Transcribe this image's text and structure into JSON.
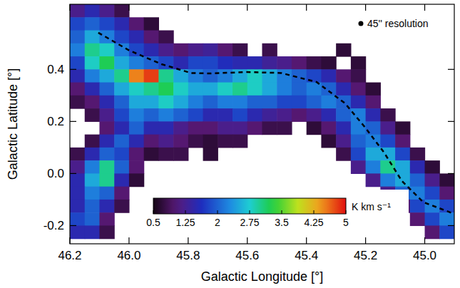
{
  "chart_data": {
    "type": "heatmap",
    "xlabel": "Galactic Longitude [°]",
    "ylabel": "Galactic Latitude [°]",
    "annotation": "45'' resolution",
    "xlim": [
      46.2,
      44.9
    ],
    "ylim": [
      -0.27,
      0.65
    ],
    "xticks": [
      46.2,
      {
        "value": 46,
        "label": "46.0"
      },
      45.8,
      45.6,
      45.4,
      45.2,
      {
        "value": 45,
        "label": "45.0"
      }
    ],
    "yticks": [
      0.4,
      0.2,
      {
        "value": 0,
        "label": "0.0"
      },
      -0.2
    ],
    "zlim": [
      0.5,
      5
    ],
    "zticks": [
      0.5,
      1.25,
      2,
      2.75,
      3.5,
      4.25,
      5
    ],
    "zlabel": "K km s⁻¹",
    "x": [
      46.175,
      46.125,
      46.075,
      46.025,
      45.975,
      45.925,
      45.875,
      45.825,
      45.775,
      45.725,
      45.675,
      45.625,
      45.575,
      45.525,
      45.475,
      45.425,
      45.375,
      45.325,
      45.275,
      45.225,
      45.175,
      45.125,
      45.075,
      45.025,
      44.975,
      44.925
    ],
    "y": [
      0.625,
      0.575,
      0.525,
      0.475,
      0.425,
      0.375,
      0.325,
      0.275,
      0.225,
      0.175,
      0.125,
      0.075,
      0.025,
      -0.025,
      -0.075,
      -0.125,
      -0.175,
      -0.225
    ],
    "z": [
      [
        1.2,
        1.5,
        1.2,
        0.8,
        null,
        null,
        null,
        null,
        null,
        null,
        null,
        null,
        null,
        null,
        null,
        null,
        null,
        null,
        null,
        null,
        null,
        null,
        null,
        null,
        null,
        null
      ],
      [
        1.8,
        2.0,
        1.8,
        1.5,
        1.0,
        0.7,
        null,
        null,
        null,
        null,
        null,
        null,
        null,
        null,
        null,
        null,
        null,
        null,
        null,
        null,
        null,
        null,
        null,
        null,
        null,
        null
      ],
      [
        2.0,
        2.5,
        2.2,
        1.8,
        1.5,
        1.0,
        0.8,
        null,
        null,
        null,
        null,
        null,
        null,
        null,
        null,
        null,
        null,
        null,
        null,
        null,
        null,
        null,
        null,
        null,
        null,
        null
      ],
      [
        2.2,
        3.0,
        2.8,
        2.2,
        1.8,
        1.5,
        1.2,
        1.0,
        1.2,
        1.3,
        1.0,
        0.8,
        null,
        0.8,
        null,
        null,
        null,
        null,
        0.7,
        null,
        null,
        null,
        null,
        null,
        null,
        null
      ],
      [
        1.8,
        2.8,
        3.2,
        2.5,
        2.2,
        2.0,
        1.8,
        1.5,
        1.8,
        1.8,
        1.6,
        1.5,
        1.5,
        1.3,
        1.2,
        1.0,
        0.8,
        0.7,
        null,
        0.7,
        null,
        null,
        null,
        null,
        null,
        null
      ],
      [
        1.5,
        2.2,
        2.5,
        3.0,
        4.5,
        4.8,
        3.0,
        2.5,
        2.2,
        2.0,
        2.2,
        2.5,
        2.8,
        2.5,
        2.2,
        2.0,
        1.8,
        1.5,
        1.0,
        0.8,
        null,
        null,
        null,
        null,
        null,
        null
      ],
      [
        1.0,
        1.5,
        2.0,
        2.5,
        2.8,
        3.0,
        3.2,
        2.8,
        2.5,
        2.5,
        2.8,
        3.0,
        2.8,
        2.5,
        2.2,
        2.0,
        2.2,
        2.0,
        1.5,
        1.0,
        0.7,
        null,
        null,
        null,
        null,
        null
      ],
      [
        0.8,
        1.0,
        1.5,
        2.0,
        2.5,
        2.5,
        2.8,
        2.5,
        2.2,
        2.0,
        2.2,
        2.2,
        2.0,
        2.0,
        1.8,
        1.8,
        2.0,
        2.2,
        2.0,
        1.5,
        1.0,
        null,
        null,
        null,
        null,
        null
      ],
      [
        null,
        0.8,
        1.2,
        1.8,
        2.2,
        2.0,
        2.2,
        2.0,
        1.8,
        1.5,
        1.5,
        1.8,
        1.5,
        1.3,
        1.2,
        1.0,
        1.2,
        1.5,
        2.0,
        2.2,
        1.5,
        0.8,
        null,
        null,
        null,
        null
      ],
      [
        null,
        null,
        1.0,
        1.5,
        2.0,
        1.5,
        1.5,
        1.2,
        1.0,
        1.0,
        1.2,
        1.2,
        1.0,
        0.8,
        0.8,
        null,
        0.7,
        1.0,
        1.5,
        2.2,
        2.0,
        1.2,
        0.7,
        null,
        null,
        null
      ],
      [
        null,
        0.8,
        1.5,
        2.0,
        1.5,
        1.0,
        1.2,
        1.0,
        0.8,
        0.7,
        0.8,
        0.8,
        null,
        null,
        null,
        null,
        null,
        0.7,
        1.2,
        2.0,
        2.2,
        1.8,
        1.0,
        null,
        null,
        null
      ],
      [
        0.8,
        1.5,
        2.0,
        1.8,
        1.0,
        0.7,
        0.8,
        0.8,
        null,
        0.7,
        null,
        null,
        null,
        null,
        null,
        null,
        null,
        null,
        0.8,
        1.8,
        2.5,
        2.5,
        1.8,
        0.8,
        null,
        null
      ],
      [
        1.2,
        2.2,
        3.0,
        2.0,
        1.0,
        null,
        null,
        null,
        null,
        null,
        null,
        null,
        null,
        null,
        null,
        null,
        null,
        null,
        null,
        1.2,
        2.2,
        3.0,
        2.5,
        1.5,
        0.7,
        null
      ],
      [
        1.5,
        2.5,
        3.0,
        1.5,
        0.7,
        null,
        null,
        null,
        null,
        null,
        null,
        null,
        null,
        null,
        null,
        null,
        null,
        null,
        null,
        null,
        1.2,
        2.2,
        2.5,
        2.0,
        1.2,
        0.7
      ],
      [
        1.5,
        2.2,
        2.0,
        1.0,
        null,
        null,
        null,
        null,
        null,
        null,
        null,
        null,
        null,
        null,
        null,
        null,
        null,
        null,
        null,
        null,
        null,
        1.2,
        2.0,
        2.2,
        1.8,
        1.0
      ],
      [
        1.5,
        2.0,
        1.5,
        0.8,
        null,
        null,
        null,
        null,
        null,
        null,
        null,
        null,
        null,
        null,
        null,
        null,
        null,
        null,
        null,
        null,
        null,
        null,
        1.0,
        1.8,
        2.2,
        1.8
      ],
      [
        1.8,
        2.0,
        1.0,
        null,
        null,
        null,
        null,
        null,
        null,
        null,
        null,
        null,
        null,
        null,
        null,
        null,
        null,
        null,
        null,
        null,
        null,
        null,
        null,
        1.0,
        1.8,
        2.2
      ],
      [
        1.5,
        1.5,
        0.8,
        null,
        null,
        null,
        null,
        null,
        null,
        null,
        null,
        null,
        null,
        null,
        null,
        null,
        null,
        null,
        null,
        null,
        null,
        null,
        null,
        null,
        1.0,
        1.8
      ]
    ],
    "dashed_line": {
      "x": [
        46.104,
        46.0,
        45.89,
        45.79,
        45.725,
        45.605,
        45.485,
        45.365,
        45.27,
        45.2,
        45.137,
        45.077,
        45.005,
        44.91
      ],
      "y": [
        0.541,
        0.473,
        0.42,
        0.386,
        0.384,
        0.39,
        0.386,
        0.351,
        0.27,
        0.175,
        0.08,
        -0.029,
        -0.11,
        -0.151
      ],
      "line_style": "dashed",
      "color": "#000000"
    }
  }
}
